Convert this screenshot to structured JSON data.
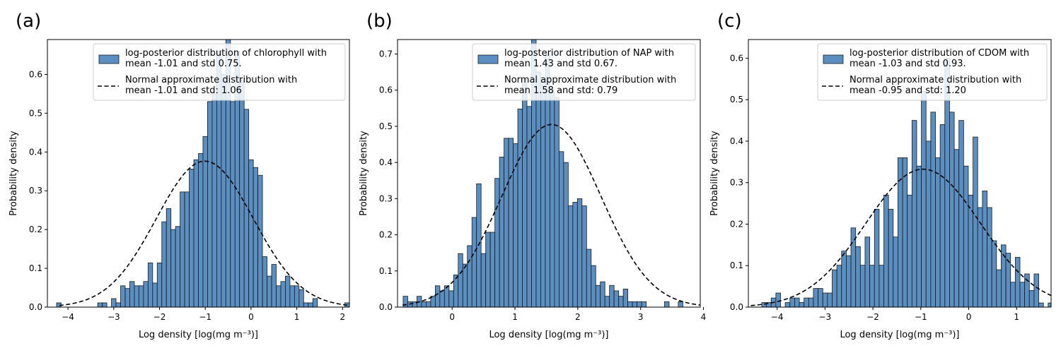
{
  "chart_data": [
    {
      "type": "histogram",
      "panel_label": "(a)",
      "xlabel": "Log density [log(mg m⁻³)]",
      "ylabel": "Probability density",
      "xlim": [
        -4.45,
        2.15
      ],
      "ylim": [
        0,
        0.69
      ],
      "xticks": [
        -4,
        -3,
        -2,
        -1,
        0,
        1,
        2
      ],
      "yticks": [
        0.0,
        0.1,
        0.2,
        0.3,
        0.4,
        0.5,
        0.6
      ],
      "xtick_labels": [
        "−4",
        "−3",
        "−2",
        "−1",
        "0",
        "1",
        "2"
      ],
      "ytick_labels": [
        "0.0",
        "0.1",
        "0.2",
        "0.3",
        "0.4",
        "0.5",
        "0.6"
      ],
      "bins_start": -4.25,
      "bin_width": 0.1,
      "values": [
        0.011,
        0,
        0,
        0,
        0,
        0,
        0,
        0,
        0,
        0.011,
        0.011,
        0,
        0.022,
        0.011,
        0.055,
        0.048,
        0.066,
        0.055,
        0.055,
        0.066,
        0.114,
        0.062,
        0.114,
        0.22,
        0.254,
        0.2,
        0.208,
        0.297,
        0.297,
        0.356,
        0.38,
        0.396,
        0.44,
        0.53,
        0.55,
        0.66,
        0.6,
        0.74,
        0.53,
        0.66,
        0.585,
        0.51,
        0.38,
        0.36,
        0.34,
        0.13,
        0.08,
        0.11,
        0.055,
        0.066,
        0.08,
        0.055,
        0.055,
        0.045,
        0.011,
        0.011,
        0.022,
        0,
        0,
        0,
        0,
        0,
        0,
        0.011,
        0.011
      ],
      "normal": {
        "mean": -1.01,
        "std": 1.06
      },
      "legend": {
        "hist_label": "log-posterior distribution of chlorophyll with\nmean -1.01 and std 0.75.",
        "normal_label": "Normal approximate distribution with\nmean -1.01 and std: 1.06"
      }
    },
    {
      "type": "histogram",
      "panel_label": "(b)",
      "xlabel": "Log density [log(mg m⁻³)]",
      "ylabel": "Probability density",
      "xlim": [
        -0.87,
        3.95
      ],
      "ylim": [
        0,
        0.74
      ],
      "xticks": [
        0,
        1,
        2,
        3,
        4
      ],
      "yticks": [
        0.0,
        0.1,
        0.2,
        0.3,
        0.4,
        0.5,
        0.6,
        0.7
      ],
      "xtick_labels": [
        "0",
        "1",
        "2",
        "3",
        "4"
      ],
      "ytick_labels": [
        "0.0",
        "0.1",
        "0.2",
        "0.3",
        "0.4",
        "0.5",
        "0.6",
        "0.7"
      ],
      "bins_start": -0.78,
      "bin_width": 0.073,
      "values": [
        0.03,
        0.015,
        0.015,
        0.03,
        0.015,
        0.015,
        0.03,
        0.059,
        0.045,
        0.059,
        0.045,
        0.089,
        0.148,
        0.119,
        0.17,
        0.248,
        0.341,
        0.148,
        0.207,
        0.207,
        0.356,
        0.415,
        0.467,
        0.467,
        0.452,
        0.548,
        0.63,
        0.555,
        0.78,
        0.65,
        0.63,
        0.7,
        0.6,
        0.58,
        0.43,
        0.4,
        0.28,
        0.29,
        0.3,
        0.28,
        0.16,
        0.115,
        0.06,
        0.07,
        0.03,
        0.06,
        0.045,
        0.03,
        0.05,
        0.015,
        0.015,
        0.015,
        0.015,
        0,
        0,
        0,
        0,
        0.015,
        0,
        0,
        0.015
      ],
      "normal": {
        "mean": 1.58,
        "std": 0.79
      },
      "legend": {
        "hist_label": "log-posterior distribution of NAP with\nmean 1.43 and std 0.67.",
        "normal_label": "Normal approximate distribution with\nmean 1.58 and std: 0.79"
      }
    },
    {
      "type": "histogram",
      "panel_label": "(c)",
      "xlabel": "Log density [log(mg m⁻³)]",
      "ylabel": "Probability density",
      "xlim": [
        -4.6,
        1.72
      ],
      "ylim": [
        0,
        0.645
      ],
      "xticks": [
        -4,
        -3,
        -2,
        -1,
        0,
        1
      ],
      "yticks": [
        0.0,
        0.1,
        0.2,
        0.3,
        0.4,
        0.5,
        0.6
      ],
      "xtick_labels": [
        "−4",
        "−3",
        "−2",
        "−1",
        "0",
        "1"
      ],
      "ytick_labels": [
        "0.0",
        "0.1",
        "0.2",
        "0.3",
        "0.4",
        "0.5",
        "0.6"
      ],
      "bins_start": -4.32,
      "bin_width": 0.098,
      "values": [
        0.011,
        0.011,
        0.022,
        0.034,
        0,
        0.011,
        0.022,
        0.022,
        0.011,
        0.022,
        0.022,
        0.045,
        0.045,
        0.034,
        0.034,
        0.09,
        0.101,
        0.135,
        0.124,
        0.191,
        0.146,
        0.101,
        0.169,
        0.101,
        0.236,
        0.101,
        0.27,
        0.236,
        0.169,
        0.36,
        0.36,
        0.27,
        0.45,
        0.34,
        0.52,
        0.4,
        0.47,
        0.36,
        0.44,
        0.6,
        0.47,
        0.38,
        0.45,
        0.34,
        0.27,
        0.41,
        0.24,
        0.28,
        0.24,
        0.16,
        0.09,
        0.15,
        0.13,
        0.06,
        0.12,
        0.06,
        0.08,
        0.04,
        0.08,
        0.01,
        0,
        0.01,
        0.01,
        0,
        0.02,
        0.03
      ],
      "normal": {
        "mean": -0.95,
        "std": 1.2
      },
      "legend": {
        "hist_label": "log-posterior distribution of CDOM with\nmean -1.03 and std 0.93.",
        "normal_label": "Normal approximate distribution with\nmean -0.95 and std: 1.20"
      }
    }
  ]
}
